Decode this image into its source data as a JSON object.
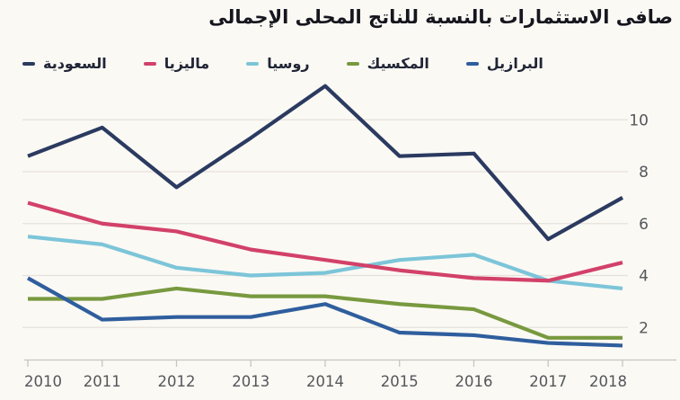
{
  "page": {
    "background": "#fbf9f4"
  },
  "chart_data": {
    "type": "line",
    "title": "صافى الاستثمارات بالنسبة للناتج المحلى الإجمالى",
    "x_labels": [
      "2010",
      "2011",
      "2012",
      "2013",
      "2014",
      "2015",
      "2016",
      "2017",
      "2018"
    ],
    "y_ticks": [
      2,
      4,
      6,
      8,
      10
    ],
    "ylim": [
      0.6,
      11.5
    ],
    "grid": "horizontal",
    "y_axis_side": "right",
    "legend_position": "top-left",
    "series": [
      {
        "name": "السعودية",
        "color": "#2b3a60",
        "values": [
          8.6,
          9.7,
          7.4,
          9.3,
          11.3,
          8.6,
          8.7,
          5.4,
          7.0
        ]
      },
      {
        "name": "ماليزيا",
        "color": "#d24169",
        "values": [
          6.8,
          6.0,
          5.7,
          5.0,
          4.6,
          4.2,
          3.9,
          3.8,
          4.5
        ]
      },
      {
        "name": "روسيا",
        "color": "#7cc5d9",
        "values": [
          5.5,
          5.2,
          4.3,
          4.0,
          4.1,
          4.6,
          4.8,
          3.8,
          3.5
        ]
      },
      {
        "name": "المكسيك",
        "color": "#78993f",
        "values": [
          3.1,
          3.1,
          3.5,
          3.2,
          3.2,
          2.9,
          2.7,
          1.6,
          1.6
        ]
      },
      {
        "name": "البرازيل",
        "color": "#2f5e9e",
        "values": [
          3.9,
          2.3,
          2.4,
          2.4,
          2.9,
          1.8,
          1.7,
          1.4,
          1.3
        ]
      }
    ],
    "axis_colors": {
      "grid": "#e5e2dc",
      "axis": "#c9c5c0",
      "tick_label": "#54565b"
    }
  }
}
